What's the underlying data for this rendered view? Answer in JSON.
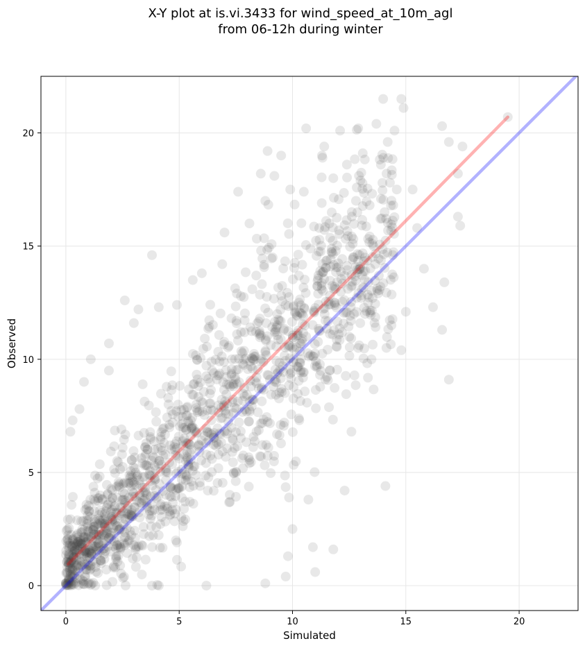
{
  "chart_data": {
    "type": "scatter",
    "title": [
      "X-Y plot at is.vi.3433 for wind_speed_at_10m_agl",
      "from 06-12h during winter"
    ],
    "xlabel": "Simulated",
    "ylabel": "Observed",
    "xlim": [
      -1.1,
      22.6
    ],
    "ylim": [
      -1.1,
      22.5
    ],
    "xticks": [
      0,
      5,
      10,
      15,
      20
    ],
    "yticks": [
      0,
      5,
      10,
      15,
      20
    ],
    "grid": true,
    "point_color": "#404040",
    "point_alpha": 0.12,
    "highlighted_points": [
      {
        "x": 0.1,
        "y": 1.9
      },
      {
        "x": 0.2,
        "y": 6.8
      },
      {
        "x": 0.3,
        "y": 7.3
      },
      {
        "x": 0.6,
        "y": 7.8
      },
      {
        "x": 0.8,
        "y": 9.0
      },
      {
        "x": 1.1,
        "y": 10.0
      },
      {
        "x": 1.9,
        "y": 9.5
      },
      {
        "x": 1.9,
        "y": 10.7
      },
      {
        "x": 2.6,
        "y": 12.6
      },
      {
        "x": 3.0,
        "y": 11.6
      },
      {
        "x": 3.2,
        "y": 12.2
      },
      {
        "x": 3.8,
        "y": 14.6
      },
      {
        "x": 4.1,
        "y": 12.3
      },
      {
        "x": 4.9,
        "y": 12.4
      },
      {
        "x": 5.6,
        "y": 13.5
      },
      {
        "x": 6.0,
        "y": 13.8
      },
      {
        "x": 6.9,
        "y": 14.2
      },
      {
        "x": 7.0,
        "y": 15.6
      },
      {
        "x": 7.6,
        "y": 17.4
      },
      {
        "x": 8.1,
        "y": 16.0
      },
      {
        "x": 8.6,
        "y": 18.2
      },
      {
        "x": 8.8,
        "y": 17.0
      },
      {
        "x": 8.9,
        "y": 19.2
      },
      {
        "x": 9.2,
        "y": 18.1
      },
      {
        "x": 9.5,
        "y": 19.0
      },
      {
        "x": 9.9,
        "y": 17.5
      },
      {
        "x": 10.5,
        "y": 17.4
      },
      {
        "x": 10.6,
        "y": 20.2
      },
      {
        "x": 11.3,
        "y": 19.0
      },
      {
        "x": 11.4,
        "y": 19.4
      },
      {
        "x": 11.8,
        "y": 18.0
      },
      {
        "x": 12.1,
        "y": 20.1
      },
      {
        "x": 12.4,
        "y": 18.6
      },
      {
        "x": 12.8,
        "y": 17.0
      },
      {
        "x": 12.9,
        "y": 20.2
      },
      {
        "x": 13.0,
        "y": 17.9
      },
      {
        "x": 13.1,
        "y": 19.1
      },
      {
        "x": 13.7,
        "y": 20.4
      },
      {
        "x": 13.9,
        "y": 18.6
      },
      {
        "x": 14.0,
        "y": 21.5
      },
      {
        "x": 14.2,
        "y": 19.6
      },
      {
        "x": 14.3,
        "y": 17.8
      },
      {
        "x": 14.5,
        "y": 20.1
      },
      {
        "x": 14.6,
        "y": 17.5
      },
      {
        "x": 14.8,
        "y": 21.5
      },
      {
        "x": 14.9,
        "y": 21.1
      },
      {
        "x": 15.3,
        "y": 17.5
      },
      {
        "x": 15.5,
        "y": 15.8
      },
      {
        "x": 15.8,
        "y": 14.0
      },
      {
        "x": 16.2,
        "y": 12.3
      },
      {
        "x": 16.6,
        "y": 20.3
      },
      {
        "x": 16.6,
        "y": 11.3
      },
      {
        "x": 16.7,
        "y": 13.4
      },
      {
        "x": 16.9,
        "y": 9.1
      },
      {
        "x": 16.9,
        "y": 19.6
      },
      {
        "x": 17.3,
        "y": 18.2
      },
      {
        "x": 17.3,
        "y": 16.3
      },
      {
        "x": 17.4,
        "y": 15.9
      },
      {
        "x": 17.5,
        "y": 19.4
      },
      {
        "x": 19.5,
        "y": 20.7
      },
      {
        "x": 14.8,
        "y": 10.4
      },
      {
        "x": 15.0,
        "y": 12.1
      },
      {
        "x": 14.1,
        "y": 4.4
      },
      {
        "x": 12.3,
        "y": 4.2
      },
      {
        "x": 11.8,
        "y": 1.6
      },
      {
        "x": 11.0,
        "y": 0.6
      },
      {
        "x": 9.7,
        "y": 0.4
      },
      {
        "x": 8.8,
        "y": 0.1
      },
      {
        "x": 6.2,
        "y": 0.0
      },
      {
        "x": 4.1,
        "y": 0.0
      },
      {
        "x": 3.8,
        "y": 0.0
      },
      {
        "x": 10.0,
        "y": 2.5
      },
      {
        "x": 9.8,
        "y": 1.3
      },
      {
        "x": 10.7,
        "y": 3.8
      },
      {
        "x": 10.9,
        "y": 1.7
      },
      {
        "x": 12.6,
        "y": 6.8
      },
      {
        "x": 12.9,
        "y": 10.5
      },
      {
        "x": 13.2,
        "y": 12.0
      }
    ],
    "cloud_params": {
      "count": 1500,
      "seed": 7,
      "x_min": 0.0,
      "x_max": 14.5,
      "y_intercept": 0.8,
      "y_slope": 1.02,
      "noise_sd": 2.4
    },
    "series": [
      {
        "type": "regression",
        "color": "#ff0000",
        "alpha": 0.3,
        "x": [
          0.1,
          19.5
        ],
        "y": [
          0.95,
          20.7
        ]
      },
      {
        "type": "identity",
        "color": "#0000ff",
        "alpha": 0.3,
        "x": [
          -1.1,
          22.6
        ],
        "y": [
          -1.1,
          22.6
        ]
      }
    ]
  }
}
